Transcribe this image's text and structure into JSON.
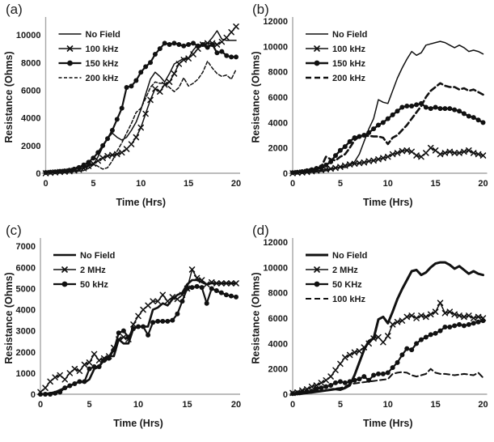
{
  "figure": {
    "background": "#ffffff",
    "axis_color": "#a6a6a6",
    "line_color": "#111111"
  },
  "chart_data": [
    {
      "panel_label": "(a)",
      "type": "line",
      "xlabel": "Time (Hrs)",
      "ylabel": "Resistance (Ohms)",
      "xlim": [
        0,
        20
      ],
      "ylim": [
        0,
        11000
      ],
      "xticks": [
        0,
        5,
        10,
        15,
        20
      ],
      "yticks": [
        0,
        2000,
        4000,
        6000,
        8000,
        10000
      ],
      "grid": false,
      "legend_position": "top-left-inside",
      "x_step": 0.5,
      "series": [
        {
          "name": "No Field",
          "line": "solid",
          "weight": 1.5,
          "marker": "none",
          "y": [
            0,
            10,
            30,
            50,
            70,
            90,
            120,
            150,
            200,
            350,
            600,
            1200,
            1900,
            2500,
            2900,
            2600,
            2400,
            2600,
            3100,
            3700,
            4600,
            5700,
            6800,
            7300,
            7000,
            6600,
            7200,
            7900,
            8100,
            8300,
            8300,
            8900,
            9300,
            9200,
            9400,
            9800,
            10300,
            9700,
            9600,
            9600,
            9600
          ]
        },
        {
          "name": "100 kHz",
          "line": "solid",
          "weight": 1.5,
          "marker": "x",
          "y": [
            0,
            30,
            60,
            90,
            110,
            140,
            190,
            260,
            360,
            520,
            700,
            900,
            1100,
            1250,
            1320,
            1380,
            1500,
            1750,
            2100,
            2600,
            3300,
            4300,
            5300,
            6100,
            5900,
            6400,
            6600,
            7200,
            7900,
            8200,
            8300,
            8600,
            9000,
            9300,
            9400,
            9400,
            9300,
            9500,
            9800,
            10200,
            10600
          ]
        },
        {
          "name": "150 kHz",
          "line": "solid",
          "weight": 2.2,
          "marker": "circle",
          "y": [
            50,
            80,
            100,
            140,
            170,
            220,
            300,
            420,
            600,
            800,
            1100,
            1500,
            2000,
            2500,
            3100,
            3900,
            4700,
            6200,
            6300,
            6700,
            7300,
            7700,
            8000,
            8600,
            9000,
            9400,
            9300,
            9400,
            9300,
            9200,
            9300,
            9400,
            9200,
            9300,
            9100,
            9300,
            8700,
            8800,
            8500,
            8400,
            8400
          ]
        },
        {
          "name": "200 kHz",
          "line": "dashed",
          "dash": "4 2.5",
          "weight": 1.5,
          "marker": "none",
          "y": [
            0,
            10,
            30,
            50,
            70,
            100,
            150,
            250,
            400,
            600,
            700,
            500,
            300,
            400,
            900,
            1600,
            2200,
            2900,
            3600,
            4400,
            4700,
            5400,
            6200,
            6600,
            6500,
            6500,
            6200,
            5900,
            6200,
            6900,
            6300,
            6500,
            6800,
            7300,
            8100,
            7600,
            7200,
            7000,
            7100,
            6800,
            7500
          ]
        }
      ]
    },
    {
      "panel_label": "(b)",
      "type": "line",
      "xlabel": "Time (Hrs)",
      "ylabel": "Resistance (Ohms)",
      "xlim": [
        0,
        20
      ],
      "ylim": [
        0,
        12000
      ],
      "xticks": [
        0,
        5,
        10,
        15,
        20
      ],
      "yticks": [
        0,
        2000,
        4000,
        6000,
        8000,
        10000,
        12000
      ],
      "grid": false,
      "legend_position": "top-left-inside",
      "x_step": 0.5,
      "series": [
        {
          "name": "No Field",
          "line": "solid",
          "weight": 1.5,
          "marker": "none",
          "y": [
            0,
            20,
            40,
            60,
            80,
            100,
            150,
            200,
            300,
            400,
            500,
            450,
            600,
            900,
            1500,
            2500,
            3500,
            4300,
            5800,
            5600,
            5500,
            6500,
            7500,
            8300,
            9000,
            9600,
            9300,
            9500,
            10100,
            10200,
            10300,
            10400,
            10300,
            10100,
            9900,
            10100,
            9900,
            9600,
            9700,
            9600,
            9400
          ]
        },
        {
          "name": "100 kHz",
          "line": "solid",
          "weight": 1.5,
          "marker": "x",
          "y": [
            0,
            30,
            60,
            100,
            150,
            200,
            250,
            300,
            350,
            420,
            500,
            600,
            700,
            750,
            800,
            850,
            950,
            1000,
            1100,
            1200,
            1300,
            1500,
            1600,
            1750,
            1800,
            1700,
            1400,
            1300,
            1600,
            2000,
            1800,
            1500,
            1600,
            1700,
            1600,
            1600,
            1700,
            1800,
            1600,
            1500,
            1400
          ]
        },
        {
          "name": "150 kHz",
          "line": "solid",
          "weight": 2.4,
          "marker": "circle",
          "y": [
            50,
            80,
            130,
            200,
            280,
            380,
            500,
            650,
            900,
            1400,
            1800,
            2100,
            2500,
            2800,
            2900,
            3000,
            3200,
            3500,
            3800,
            4000,
            4300,
            4600,
            4900,
            5200,
            5300,
            5300,
            5400,
            5500,
            5200,
            5100,
            5200,
            5100,
            5100,
            5100,
            5000,
            4900,
            4700,
            4500,
            4400,
            4200,
            4000
          ]
        },
        {
          "name": "200 kHz",
          "line": "dashed",
          "dash": "7 4",
          "weight": 2.6,
          "marker": "none",
          "y": [
            0,
            30,
            60,
            100,
            150,
            250,
            500,
            1300,
            1100,
            1000,
            1300,
            1500,
            2000,
            2600,
            2900,
            2950,
            2950,
            2900,
            2900,
            2800,
            2300,
            2800,
            3000,
            3400,
            3800,
            4300,
            4800,
            5300,
            6000,
            6500,
            6800,
            7100,
            6900,
            6800,
            6800,
            6600,
            6700,
            6500,
            6600,
            6400,
            6200
          ]
        }
      ]
    },
    {
      "panel_label": "(c)",
      "type": "line",
      "xlabel": "Time (Hrs)",
      "ylabel": "Resistance (Ohms)",
      "xlim": [
        0,
        20
      ],
      "ylim": [
        0,
        7200
      ],
      "xticks": [
        0,
        5,
        10,
        15,
        20
      ],
      "yticks": [
        0,
        1000,
        2000,
        3000,
        4000,
        5000,
        6000,
        7000
      ],
      "grid": false,
      "legend_position": "top-left-inside",
      "x_step": 0.5,
      "series": [
        {
          "name": "No Field",
          "line": "solid",
          "weight": 2.6,
          "marker": "none",
          "y": [
            0,
            20,
            50,
            100,
            200,
            300,
            400,
            500,
            600,
            550,
            700,
            1200,
            1300,
            1700,
            1800,
            1800,
            2600,
            2400,
            2400,
            3100,
            3200,
            3200,
            3200,
            4000,
            4100,
            4300,
            4200,
            4500,
            4700,
            4800,
            5200,
            5400,
            5400,
            5300,
            5200,
            5250,
            5250,
            5250,
            5250,
            5250,
            5250
          ]
        },
        {
          "name": "2 MHz",
          "line": "solid",
          "weight": 1.5,
          "marker": "x",
          "y": [
            100,
            300,
            600,
            800,
            900,
            700,
            1000,
            1200,
            1100,
            1400,
            1500,
            1900,
            1600,
            1700,
            1800,
            2200,
            2600,
            2700,
            2600,
            3300,
            3700,
            4000,
            4200,
            4400,
            4400,
            4700,
            4400,
            4600,
            4500,
            4700,
            5000,
            5900,
            5500,
            5400,
            5200,
            5300,
            5250,
            5250,
            5250,
            5250,
            5250
          ]
        },
        {
          "name": "50 kHz",
          "line": "solid",
          "weight": 2.2,
          "marker": "circle",
          "y": [
            0,
            0,
            0,
            50,
            100,
            300,
            400,
            500,
            600,
            600,
            1200,
            1300,
            1300,
            1600,
            1700,
            2100,
            2900,
            3000,
            2700,
            3100,
            3200,
            3200,
            2800,
            3400,
            3450,
            3450,
            3450,
            3500,
            3800,
            4400,
            5000,
            5050,
            5100,
            5050,
            4300,
            5000,
            4900,
            4800,
            4700,
            4650,
            4600
          ]
        }
      ]
    },
    {
      "panel_label": "(d)",
      "type": "line",
      "xlabel": "Time (Hrs)",
      "ylabel": "Resistance (Ohms)",
      "xlim": [
        0,
        20
      ],
      "ylim": [
        0,
        12000
      ],
      "xticks": [
        0,
        5,
        10,
        15,
        20
      ],
      "yticks": [
        0,
        2000,
        4000,
        6000,
        8000,
        10000,
        12000
      ],
      "grid": false,
      "legend_position": "top-left-inside",
      "x_step": 0.5,
      "series": [
        {
          "name": "No Field",
          "line": "solid",
          "weight": 3,
          "marker": "none",
          "y": [
            0,
            20,
            50,
            100,
            150,
            200,
            250,
            300,
            350,
            400,
            350,
            500,
            700,
            1500,
            2500,
            3500,
            4200,
            4400,
            5900,
            6100,
            5600,
            6500,
            7500,
            8300,
            9000,
            9700,
            9800,
            9400,
            9600,
            10000,
            10300,
            10400,
            10400,
            10200,
            9900,
            10100,
            9800,
            9500,
            9700,
            9500,
            9400
          ]
        },
        {
          "name": "2 MHz",
          "line": "solid",
          "weight": 1.5,
          "marker": "x",
          "y": [
            100,
            150,
            300,
            400,
            600,
            700,
            900,
            1100,
            1400,
            1900,
            2400,
            2900,
            3100,
            3300,
            3400,
            3700,
            4000,
            4400,
            4500,
            4100,
            4600,
            5500,
            5700,
            5800,
            6100,
            6200,
            6000,
            6200,
            6100,
            6300,
            6500,
            7200,
            6400,
            6500,
            6300,
            6200,
            6100,
            6200,
            6000,
            6100,
            6000
          ]
        },
        {
          "name": "50 KHz",
          "line": "solid",
          "weight": 2.2,
          "marker": "circle",
          "y": [
            50,
            100,
            150,
            200,
            250,
            400,
            500,
            600,
            700,
            900,
            1000,
            900,
            1000,
            1100,
            1200,
            1400,
            1100,
            1500,
            1600,
            1600,
            1700,
            2100,
            2500,
            3100,
            3600,
            3500,
            4000,
            4300,
            4500,
            4700,
            4800,
            5000,
            5300,
            5300,
            5400,
            5500,
            5400,
            5500,
            5600,
            5700,
            5800
          ]
        },
        {
          "name": "100 kHz",
          "line": "dashed",
          "dash": "7 4",
          "weight": 2,
          "marker": "none",
          "y": [
            0,
            20,
            50,
            100,
            150,
            200,
            250,
            300,
            400,
            450,
            500,
            600,
            800,
            850,
            900,
            950,
            1000,
            1050,
            1100,
            1150,
            1200,
            1600,
            1700,
            1750,
            1700,
            1500,
            1400,
            1500,
            1600,
            2000,
            1700,
            1600,
            1600,
            1550,
            1500,
            1550,
            1600,
            1550,
            1500,
            1700,
            1300
          ]
        }
      ]
    }
  ]
}
